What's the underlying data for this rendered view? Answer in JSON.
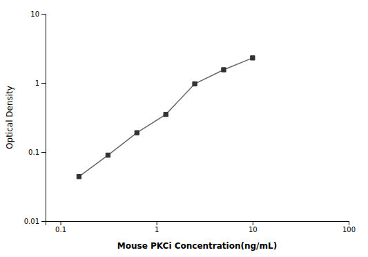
{
  "chart_data": {
    "type": "line",
    "x": [
      0.156,
      0.3125,
      0.625,
      1.25,
      2.5,
      5.0,
      10.0
    ],
    "values": [
      0.044,
      0.09,
      0.19,
      0.35,
      0.97,
      1.55,
      2.3
    ],
    "xlabel": "Mouse PKCi Concentration(ng/mL)",
    "ylabel": "Optical Density",
    "xlim": [
      0.07,
      100
    ],
    "ylim": [
      0.01,
      10
    ],
    "xticks": [
      0.1,
      1,
      10,
      100
    ],
    "yticks": [
      0.01,
      0.1,
      1,
      10
    ],
    "log": true,
    "grid": false,
    "color": "#666666",
    "marker": "square"
  }
}
